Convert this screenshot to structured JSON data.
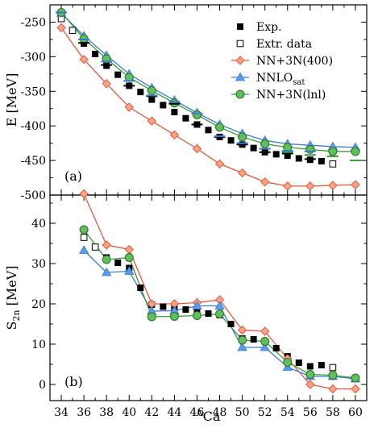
{
  "chart_data": [
    {
      "type": "line",
      "panel_label": "(a)",
      "ylabel_main": "E",
      "ylabel_unit": "[MeV]",
      "ylim": [
        -500,
        -225
      ],
      "xlim": [
        33,
        61
      ],
      "yticks": [
        -250,
        -300,
        -350,
        -400,
        -450,
        -500
      ],
      "ytick_labels": [
        "-250",
        "-300",
        "-350",
        "-400",
        "-450",
        "-500"
      ],
      "legend": {
        "placement": "top-right",
        "entries": [
          {
            "label": "Exp.",
            "series": "exp"
          },
          {
            "label": "Extr. data",
            "series": "extr"
          },
          {
            "label": "NN+3N(400)",
            "series": "nn400"
          },
          {
            "label_main": "NNLO",
            "label_sub": "sat",
            "series": "nnlosat"
          },
          {
            "label": "NN+3N(lnl)",
            "series": "lnl"
          }
        ]
      },
      "series": [
        {
          "key": "exp",
          "marker": "filled-square",
          "color": "#000000",
          "x": [
            36,
            37,
            38,
            39,
            40,
            41,
            42,
            43,
            44,
            45,
            46,
            47,
            48,
            49,
            50,
            51,
            52,
            53,
            54,
            55,
            56,
            57
          ],
          "y": [
            -281,
            -296,
            -313,
            -326,
            -342,
            -351,
            -362,
            -370,
            -380,
            -389,
            -398,
            -406,
            -416,
            -421,
            -427,
            -432,
            -438,
            -441,
            -443,
            -447,
            -449,
            -451
          ]
        },
        {
          "key": "extr",
          "marker": "open-square",
          "color": "#000000",
          "x": [
            34,
            35,
            58
          ],
          "y": [
            -245,
            -262,
            -455
          ]
        },
        {
          "key": "nn400",
          "marker": "diamond",
          "color": "#e8573c",
          "line": true,
          "x": [
            34,
            36,
            38,
            40,
            42,
            44,
            46,
            48,
            50,
            52,
            54,
            56,
            58,
            60
          ],
          "y": [
            -258,
            -304,
            -339,
            -373,
            -393,
            -413,
            -433,
            -455,
            -468,
            -481,
            -487,
            -487,
            -486,
            -485
          ]
        },
        {
          "key": "nnlosat",
          "marker": "triangle",
          "color": "#3a7bd5",
          "line": true,
          "x": [
            34,
            36,
            38,
            40,
            42,
            44,
            46,
            48,
            50,
            52,
            54,
            56,
            58,
            60
          ],
          "y": [
            -237,
            -270,
            -298,
            -325,
            -345,
            -363,
            -381,
            -398,
            -411,
            -421,
            -426,
            -428,
            -430,
            -431
          ]
        },
        {
          "key": "lnl",
          "marker": "circle",
          "color": "#3a9a3a",
          "line": true,
          "x": [
            34,
            36,
            38,
            40,
            42,
            44,
            46,
            48,
            50,
            52,
            54,
            56,
            58,
            60
          ],
          "y": [
            -236,
            -274,
            -303,
            -330,
            -349,
            -367,
            -384,
            -402,
            -416,
            -426,
            -431,
            -434,
            -437,
            -437
          ]
        }
      ],
      "extra_marks": [
        {
          "color": "#000000",
          "x": [
            34,
            36,
            38,
            40,
            42,
            44,
            46,
            48,
            50,
            52,
            54,
            56
          ],
          "y": [
            -236,
            -280,
            -312,
            -342,
            -357,
            -368,
            -398,
            -416,
            -427,
            -438,
            -440,
            -448
          ]
        },
        {
          "color": "#3a7bd5",
          "x": [
            34,
            36,
            38,
            40,
            42,
            44,
            46,
            48,
            50,
            52,
            54,
            56
          ],
          "y": [
            -236,
            -275,
            -307,
            -335,
            -356,
            -365,
            -382,
            -415,
            -425,
            -433,
            -436,
            -437
          ]
        },
        {
          "color": "#3a9a3a",
          "x": [
            54,
            56,
            58,
            60
          ],
          "y": [
            -438,
            -442,
            -444,
            -450
          ]
        }
      ]
    },
    {
      "type": "line",
      "panel_label": "(b)",
      "ylabel_main": "S",
      "ylabel_sub": "2n",
      "ylabel_unit": "[MeV]",
      "xlabel_sup": "A",
      "xlabel_main": "Ca",
      "ylim": [
        -4,
        47
      ],
      "xlim": [
        33,
        61
      ],
      "yticks": [
        0,
        10,
        20,
        30,
        40
      ],
      "ytick_labels": [
        "0",
        "10",
        "20",
        "30",
        "40"
      ],
      "xticks": [
        34,
        36,
        38,
        40,
        42,
        44,
        46,
        48,
        50,
        52,
        54,
        56,
        58,
        60
      ],
      "xtick_labels": [
        "34",
        "36",
        "38",
        "40",
        "42",
        "44",
        "46",
        "48",
        "50",
        "52",
        "54",
        "56",
        "58",
        "60"
      ],
      "series": [
        {
          "key": "exp",
          "marker": "filled-square",
          "color": "#000000",
          "x": [
            38,
            39,
            40,
            41,
            42,
            43,
            44,
            45,
            46,
            47,
            48,
            49,
            50,
            51,
            52,
            53,
            54,
            55,
            56,
            57
          ],
          "y": [
            31.5,
            30.2,
            28.9,
            24.0,
            19.8,
            19.3,
            19.0,
            18.6,
            18.1,
            17.6,
            17.2,
            15.0,
            11.4,
            11.2,
            10.7,
            9.0,
            7.0,
            5.4,
            4.5,
            4.8
          ]
        },
        {
          "key": "extr",
          "marker": "open-square",
          "color": "#000000",
          "x": [
            36,
            37,
            58
          ],
          "y": [
            36.5,
            34.1,
            4.2
          ]
        },
        {
          "key": "nn400",
          "marker": "diamond",
          "color": "#e8573c",
          "line": true,
          "x": [
            36,
            38,
            40,
            42,
            44,
            46,
            48,
            50,
            52,
            54,
            56,
            58,
            60
          ],
          "y": [
            47.3,
            34.6,
            33.5,
            20.0,
            20.0,
            20.3,
            21.0,
            13.5,
            13.2,
            6.4,
            0.0,
            -1.1,
            -1.1
          ]
        },
        {
          "key": "nnlosat",
          "marker": "triangle",
          "color": "#3a7bd5",
          "line": true,
          "x": [
            36,
            38,
            40,
            42,
            44,
            46,
            48,
            50,
            52,
            54,
            56,
            58,
            60
          ],
          "y": [
            33.3,
            27.8,
            28.1,
            18.2,
            18.3,
            19.5,
            19.5,
            9.2,
            9.2,
            4.3,
            2.0,
            2.0,
            1.4
          ]
        },
        {
          "key": "lnl",
          "marker": "circle",
          "color": "#3a9a3a",
          "line": true,
          "x": [
            36,
            38,
            40,
            42,
            44,
            46,
            48,
            50,
            52,
            54,
            56,
            58,
            60
          ],
          "y": [
            38.4,
            31.0,
            31.5,
            16.8,
            16.9,
            17.1,
            17.5,
            11.0,
            10.7,
            5.5,
            2.5,
            2.3,
            1.6
          ]
        }
      ]
    }
  ]
}
